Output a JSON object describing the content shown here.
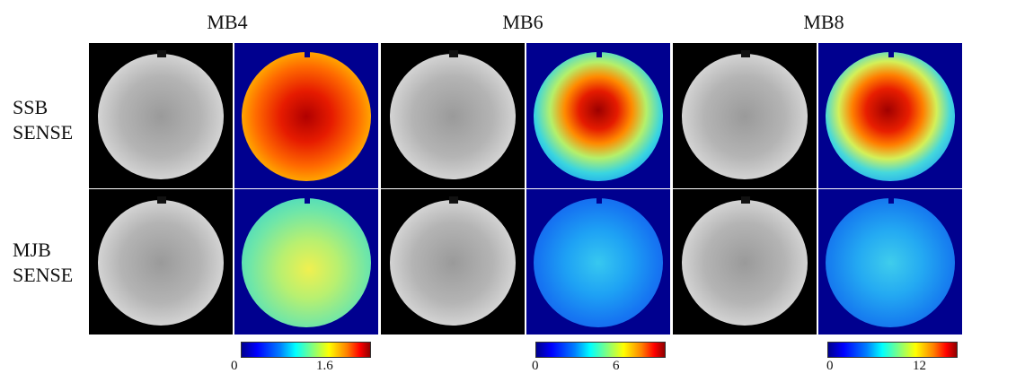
{
  "columns": [
    {
      "title": "MB4",
      "colorbar": {
        "min": "0",
        "mid": "1.6"
      }
    },
    {
      "title": "MB6",
      "colorbar": {
        "min": "0",
        "mid": "6"
      }
    },
    {
      "title": "MB8",
      "colorbar": {
        "min": "0",
        "mid": "12"
      }
    }
  ],
  "rows": [
    {
      "line1": "SSB",
      "line2": "SENSE"
    },
    {
      "line1": "MJB",
      "line2": "SENSE"
    }
  ],
  "colormap": "jet"
}
